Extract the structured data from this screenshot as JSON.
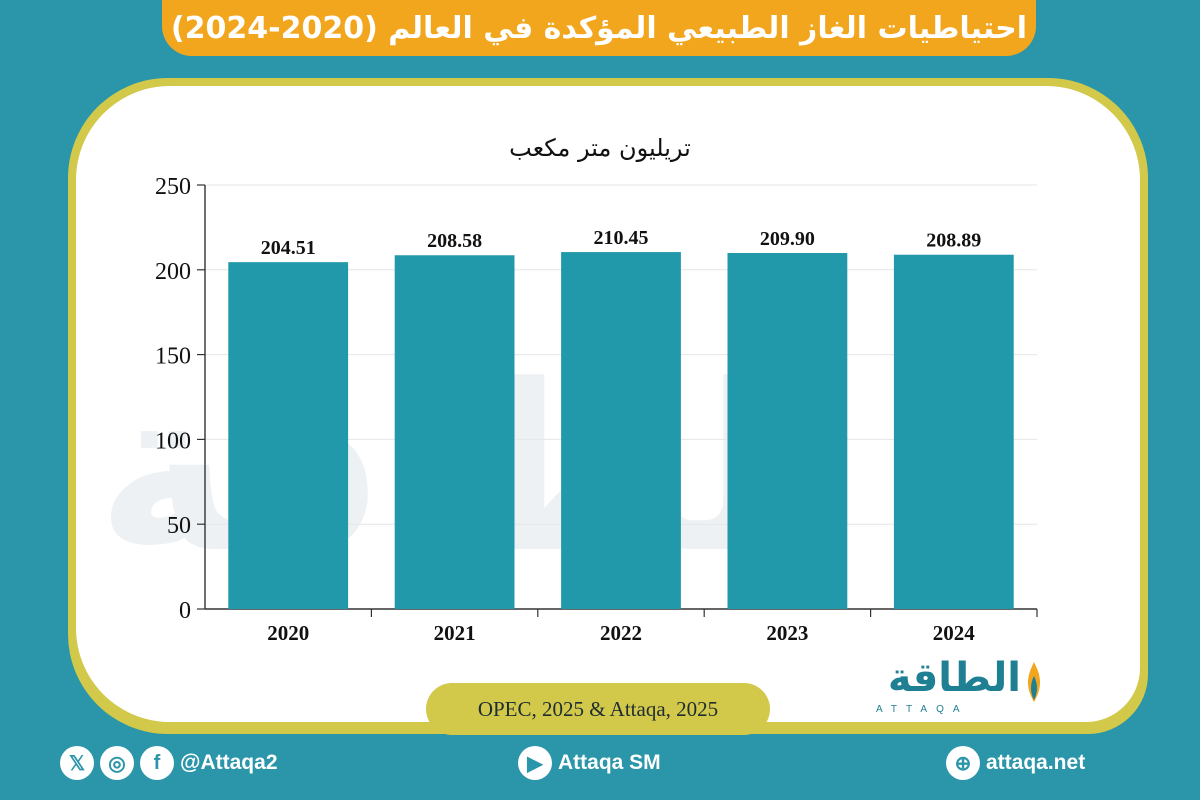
{
  "header": {
    "title": "احتياطيات الغاز الطبيعي المؤكدة في العالم (2020-2024)"
  },
  "chart_data": {
    "type": "bar",
    "title": "تريليون متر مكعب",
    "categories": [
      "2020",
      "2021",
      "2022",
      "2023",
      "2024"
    ],
    "values": [
      204.51,
      208.58,
      210.45,
      209.9,
      208.89
    ],
    "value_labels": [
      "204.51",
      "208.58",
      "210.45",
      "209.90",
      "208.89"
    ],
    "ylim": [
      0,
      250
    ],
    "yticks": [
      0,
      50,
      100,
      150,
      200,
      250
    ],
    "bar_color": "#2199aa",
    "grid": true,
    "legend": "none"
  },
  "source": {
    "text": "OPEC, 2025 & Attaqa, 2025"
  },
  "logo": {
    "arabic": "الطاقة",
    "latin": "ATTAQA"
  },
  "footer": {
    "social_handle": "@Attaqa2",
    "youtube": "Attaqa SM",
    "website": "attaqa.net"
  },
  "colors": {
    "background": "#2b96a9",
    "title_bar": "#f2a61e",
    "border": "#d2c94a"
  }
}
